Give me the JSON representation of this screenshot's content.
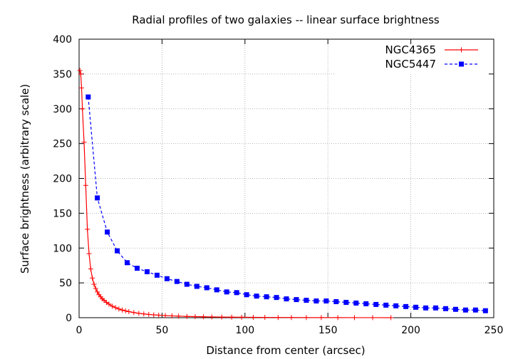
{
  "chart_data": {
    "type": "line",
    "title": "Radial profiles of two galaxies -- linear surface brightness",
    "xlabel": "Distance from center (arcsec)",
    "ylabel": "Surface brightness (arbitrary scale)",
    "xlim": [
      0,
      250
    ],
    "ylim": [
      0,
      400
    ],
    "xticks": [
      0,
      50,
      100,
      150,
      200,
      250
    ],
    "yticks": [
      0,
      50,
      100,
      150,
      200,
      250,
      300,
      350,
      400
    ],
    "grid": true,
    "legend_position": "top-right",
    "series": [
      {
        "name": "NGC4365",
        "color": "#ff0000",
        "line_style": "solid",
        "marker": "plus",
        "x": [
          0.5,
          1.0,
          1.5,
          2.0,
          3.0,
          4.0,
          5.0,
          6.0,
          7.0,
          8.0,
          9.0,
          10.0,
          11.0,
          12.0,
          13.0,
          14.0,
          15.0,
          16.5,
          18.0,
          20.0,
          22.0,
          24.0,
          26.0,
          28.0,
          30.0,
          33.0,
          36.0,
          39.0,
          42.0,
          45.0,
          48.0,
          52.0,
          56.0,
          60.0,
          65.0,
          70.0,
          75.0,
          80.0,
          86.0,
          92.0,
          98.0,
          105.0,
          112.0,
          120.0,
          128.0,
          137.0,
          146.0,
          156.0,
          166.0,
          177.0,
          188.0
        ],
        "y": [
          355,
          350,
          330,
          300,
          252,
          190,
          127,
          92,
          70,
          57,
          48,
          42,
          37,
          33,
          30,
          27,
          25,
          22,
          19.5,
          16.5,
          14.5,
          12.5,
          11,
          9.8,
          8.7,
          7.4,
          6.3,
          5.4,
          4.7,
          4.1,
          3.6,
          3.0,
          2.6,
          2.2,
          1.8,
          1.5,
          1.3,
          1.1,
          0.9,
          0.75,
          0.6,
          0.5,
          0.4,
          0.3,
          0.25,
          0.2,
          0.15,
          0.1,
          0.08,
          0.05,
          0.03
        ]
      },
      {
        "name": "NGC5447",
        "color": "#0000ff",
        "line_style": "dashed",
        "marker": "filled-square",
        "x": [
          5.5,
          11.0,
          17.0,
          23.0,
          29.0,
          35.0,
          41.0,
          47.0,
          53.0,
          59.0,
          65.0,
          71.0,
          77.0,
          83.0,
          89.0,
          95.0,
          101.0,
          107.0,
          113.0,
          119.0,
          125.0,
          131.0,
          137.0,
          143.0,
          149.0,
          155.0,
          161.0,
          167.0,
          173.0,
          179.0,
          185.0,
          191.0,
          197.0,
          203.0,
          209.0,
          215.0,
          221.0,
          227.0,
          233.0,
          239.0,
          245.0
        ],
        "y": [
          317,
          172,
          123,
          96,
          79,
          71,
          66,
          61,
          56,
          52,
          48,
          45,
          43,
          40,
          37,
          36,
          33,
          31,
          30,
          29,
          27,
          26,
          25,
          24,
          24,
          23,
          22,
          21,
          20,
          19,
          18,
          17,
          16,
          15,
          14,
          14,
          13,
          12,
          11,
          11,
          10
        ]
      }
    ]
  }
}
